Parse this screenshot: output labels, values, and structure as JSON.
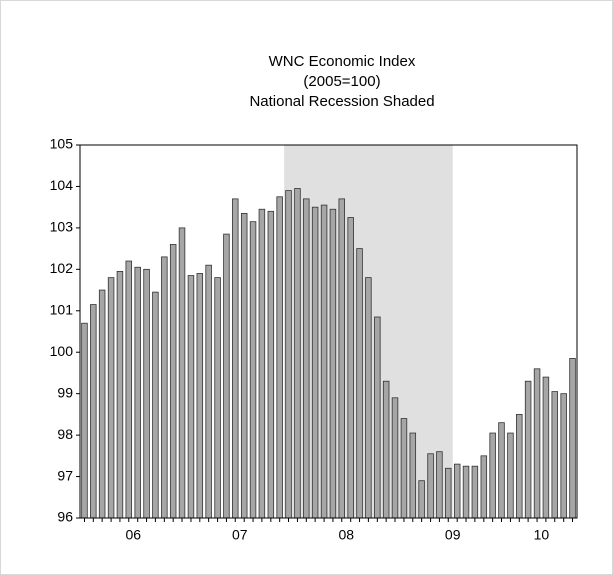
{
  "chart_data": {
    "type": "bar",
    "title": [
      "WNC Economic Index",
      "(2005=100)",
      "National Recession Shaded"
    ],
    "x": [
      2006.042,
      2006.125,
      2006.208,
      2006.292,
      2006.375,
      2006.458,
      2006.542,
      2006.625,
      2006.708,
      2006.792,
      2006.875,
      2006.958,
      2007.042,
      2007.125,
      2007.208,
      2007.292,
      2007.375,
      2007.458,
      2007.542,
      2007.625,
      2007.708,
      2007.792,
      2007.875,
      2007.958,
      2008.042,
      2008.125,
      2008.208,
      2008.292,
      2008.375,
      2008.458,
      2008.542,
      2008.625,
      2008.708,
      2008.792,
      2008.875,
      2008.958,
      2009.042,
      2009.125,
      2009.208,
      2009.292,
      2009.375,
      2009.458,
      2009.542,
      2009.625,
      2009.708,
      2009.792,
      2009.875,
      2009.958,
      2010.042,
      2010.125,
      2010.208,
      2010.292,
      2010.375,
      2010.458,
      2010.542,
      2010.625
    ],
    "values": [
      100.7,
      101.15,
      101.5,
      101.8,
      101.95,
      102.2,
      102.05,
      102.0,
      101.45,
      102.3,
      102.6,
      103.0,
      101.85,
      101.9,
      102.1,
      101.8,
      102.85,
      103.7,
      103.35,
      103.15,
      103.45,
      103.4,
      103.75,
      103.9,
      103.95,
      103.7,
      103.5,
      103.55,
      103.45,
      103.7,
      103.25,
      102.5,
      101.8,
      100.85,
      99.3,
      98.9,
      98.4,
      98.05,
      96.9,
      97.55,
      97.6,
      97.2,
      97.3,
      97.25,
      97.25,
      97.5,
      98.05,
      98.3,
      98.05,
      98.5,
      99.3,
      99.6,
      99.4,
      99.05,
      99.0,
      99.85
    ],
    "color": "#a6a6a6",
    "shaded_x": [
      2007.917,
      2009.5
    ],
    "shade_color": "#e0e0e0",
    "xlim": [
      2006,
      2010.667
    ],
    "xticks": [
      {
        "value": 2006.5,
        "label": "06"
      },
      {
        "value": 2007.5,
        "label": "07"
      },
      {
        "value": 2008.5,
        "label": "08"
      },
      {
        "value": 2009.5,
        "label": "09"
      },
      {
        "value": 2010.333,
        "label": "10"
      }
    ],
    "ylim": [
      96,
      105
    ],
    "yticks": [
      96,
      97,
      98,
      99,
      100,
      101,
      102,
      103,
      104,
      105
    ]
  }
}
